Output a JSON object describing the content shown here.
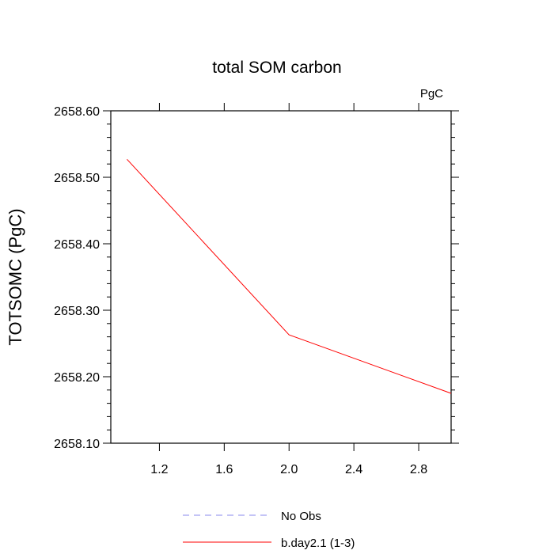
{
  "chart_data": {
    "type": "line",
    "title": "total SOM carbon",
    "units": "PgC",
    "ylabel": "TOTSOMC  (PgC)",
    "xlabel": "",
    "xlim": [
      0.9,
      3.0
    ],
    "ylim": [
      2658.1,
      2658.6
    ],
    "xticks": [
      1.2,
      1.6,
      2.0,
      2.4,
      2.8
    ],
    "xtick_labels": [
      "1.2",
      "1.6",
      "2.0",
      "2.4",
      "2.8"
    ],
    "yticks": [
      2658.1,
      2658.2,
      2658.3,
      2658.4,
      2658.5,
      2658.6
    ],
    "ytick_labels": [
      "2658.10",
      "2658.20",
      "2658.30",
      "2658.40",
      "2658.50",
      "2658.60"
    ],
    "grid": false,
    "legend_position": "bottom",
    "series": [
      {
        "name": "No Obs",
        "color": "#8888ee",
        "dash": "dashed",
        "x": [],
        "y": []
      },
      {
        "name": "b.day2.1 (1-3)",
        "color": "#ff0000",
        "dash": "solid",
        "x": [
          1,
          2,
          3
        ],
        "y": [
          2658.527,
          2658.263,
          2658.175
        ]
      }
    ]
  }
}
